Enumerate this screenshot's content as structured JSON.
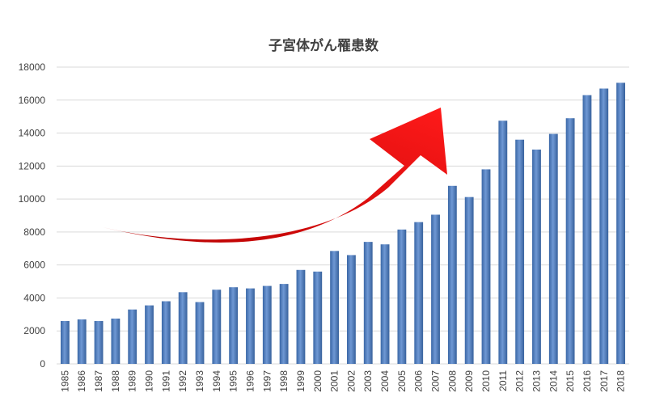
{
  "chart_data": {
    "type": "bar",
    "title": "子宮体がん罹患数",
    "xlabel": "",
    "ylabel": "",
    "ylim": [
      0,
      18000
    ],
    "yticks": [
      0,
      2000,
      4000,
      6000,
      8000,
      10000,
      12000,
      14000,
      16000,
      18000
    ],
    "grid": true,
    "legend": "none",
    "categories": [
      "1985",
      "1986",
      "1987",
      "1988",
      "1989",
      "1990",
      "1991",
      "1992",
      "1993",
      "1994",
      "1995",
      "1996",
      "1997",
      "1998",
      "1999",
      "2000",
      "2001",
      "2002",
      "2003",
      "2004",
      "2005",
      "2006",
      "2007",
      "2008",
      "2009",
      "2010",
      "2011",
      "2012",
      "2013",
      "2014",
      "2015",
      "2016",
      "2017",
      "2018"
    ],
    "values": [
      2600,
      2700,
      2600,
      2750,
      3300,
      3550,
      3800,
      4350,
      3750,
      4500,
      4650,
      4580,
      4730,
      4850,
      5700,
      5600,
      6850,
      6600,
      7400,
      7250,
      8150,
      8600,
      9050,
      10800,
      10120,
      11800,
      14750,
      13600,
      13000,
      13950,
      14900,
      16300,
      16700,
      17050
    ],
    "bar_color": "#4f7fc0",
    "annotation": {
      "type": "arrow",
      "meaning": "upward-trend",
      "color": "#e00000"
    }
  }
}
